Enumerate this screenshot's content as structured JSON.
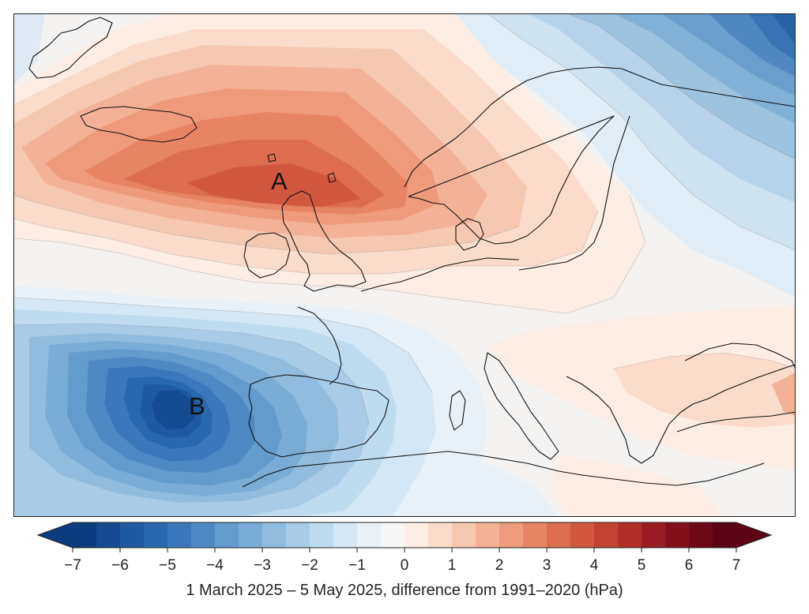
{
  "map": {
    "markers": [
      {
        "label": "A",
        "type": "high"
      },
      {
        "label": "B",
        "type": "low"
      }
    ]
  },
  "colorbar": {
    "min": -7,
    "max": 7,
    "step": 0.5,
    "tick_labels": [
      "−7",
      "−6",
      "−5",
      "−4",
      "−3",
      "−2",
      "−1",
      "0",
      "1",
      "2",
      "3",
      "4",
      "5",
      "6",
      "7"
    ],
    "caption": "1 March 2025 – 5 May 2025, difference from 1991–2020 (hPa)",
    "colors": [
      "#0b3c7d",
      "#144b91",
      "#1d5aa1",
      "#2868af",
      "#3a78bb",
      "#4e89c4",
      "#639bcd",
      "#79acd6",
      "#90bddf",
      "#a8cce7",
      "#bfdbee",
      "#d5e7f4",
      "#e8f1f8",
      "#f7f7f7",
      "#fdeee5",
      "#fbdccc",
      "#f7c8b0",
      "#f3b295",
      "#ee9b7b",
      "#e78464",
      "#de6d50",
      "#d2573f",
      "#c34232",
      "#b12e29",
      "#9b1c22",
      "#84101e",
      "#6d0819",
      "#5a0416"
    ]
  }
}
